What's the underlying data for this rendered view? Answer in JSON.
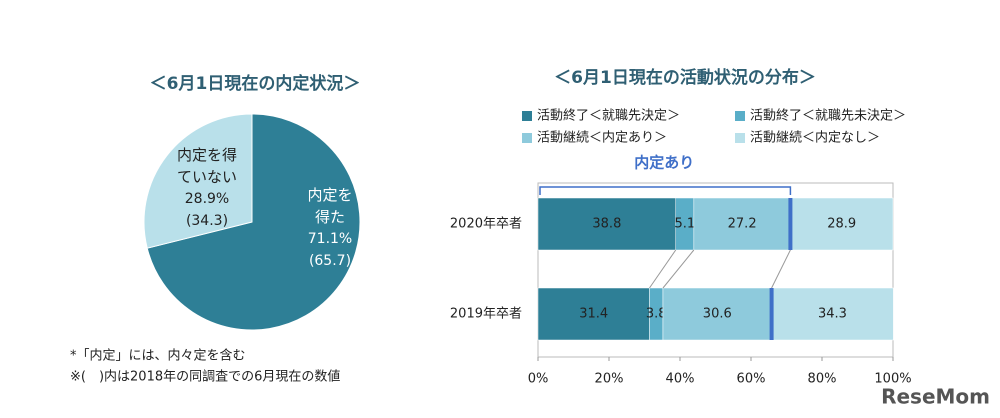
{
  "chart_data": [
    {
      "type": "pie",
      "title": "＜6月1日現在の内定状況＞",
      "categories": [
        "内定を得た",
        "内定を得ていない"
      ],
      "values": [
        71.1,
        28.9
      ],
      "value_labels": [
        "71.1%",
        "28.9%"
      ],
      "prev_values": [
        65.7,
        34.3
      ],
      "prev_value_labels": [
        "(65.7)",
        "(34.3)"
      ],
      "colors": [
        "#2e7f96",
        "#b9e0ea"
      ],
      "notes": [
        "*「内定」には、内々定を含む",
        "※(　)内は2018年の同調査での6月現在の数値"
      ]
    },
    {
      "type": "stacked-barh",
      "title": "＜6月1日現在の活動状況の分布＞",
      "categories": [
        "2020年卒者",
        "2019年卒者"
      ],
      "series": [
        {
          "name": "活動終了＜就職先決定＞",
          "color": "#2e7f96",
          "values": [
            38.8,
            31.4
          ]
        },
        {
          "name": "活動終了＜就職先未決定＞",
          "color": "#5aaec8",
          "values": [
            5.1,
            3.8
          ]
        },
        {
          "name": "活動継続＜内定あり＞",
          "color": "#8ecadc",
          "values": [
            27.2,
            30.6
          ]
        },
        {
          "name": "活動継続＜内定なし＞",
          "color": "#b9e0ea",
          "values": [
            28.9,
            34.3
          ]
        }
      ],
      "xlim": [
        0,
        100
      ],
      "xticks": [
        {
          "value": 0,
          "label": "0%"
        },
        {
          "value": 20,
          "label": "20%"
        },
        {
          "value": 40,
          "label": "40%"
        },
        {
          "value": 60,
          "label": "60%"
        },
        {
          "value": 80,
          "label": "80%"
        },
        {
          "value": 100,
          "label": "100%"
        }
      ],
      "annotation": "内定あり",
      "watermark": "ReseMom"
    }
  ]
}
